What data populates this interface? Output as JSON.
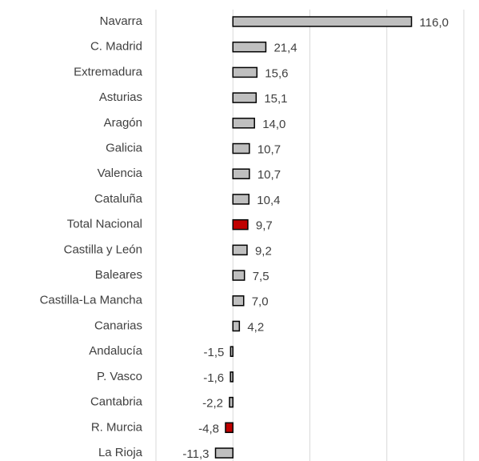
{
  "chart_data": {
    "type": "hbar",
    "categories": [
      "Navarra",
      "C. Madrid",
      "Extremadura",
      "Asturias",
      "Aragón",
      "Galicia",
      "Valencia",
      "Cataluña",
      "Total Nacional",
      "Castilla y León",
      "Baleares",
      "Castilla-La Mancha",
      "Canarias",
      "Andalucía",
      "P. Vasco",
      "Cantabria",
      "R. Murcia",
      "La Rioja"
    ],
    "values": [
      116.0,
      21.4,
      15.6,
      15.1,
      14.0,
      10.7,
      10.7,
      10.4,
      9.7,
      9.2,
      7.5,
      7.0,
      4.2,
      -1.5,
      -1.6,
      -2.2,
      -4.8,
      -11.3
    ],
    "value_labels": [
      "116,0",
      "21,4",
      "15,6",
      "15,1",
      "14,0",
      "10,7",
      "10,7",
      "10,4",
      "9,7",
      "9,2",
      "7,5",
      "7,0",
      "4,2",
      "-1,5",
      "-1,6",
      "-2,2",
      "-4,8",
      "-11,3"
    ],
    "colors": [
      "#bfbfbf",
      "#bfbfbf",
      "#bfbfbf",
      "#bfbfbf",
      "#bfbfbf",
      "#bfbfbf",
      "#bfbfbf",
      "#bfbfbf",
      "#c00000",
      "#bfbfbf",
      "#bfbfbf",
      "#bfbfbf",
      "#bfbfbf",
      "#bfbfbf",
      "#bfbfbf",
      "#bfbfbf",
      "#c00000",
      "#bfbfbf"
    ],
    "xlim": [
      -50,
      150
    ],
    "xticks": [
      -50,
      0,
      50,
      100,
      150
    ],
    "grid": true
  }
}
